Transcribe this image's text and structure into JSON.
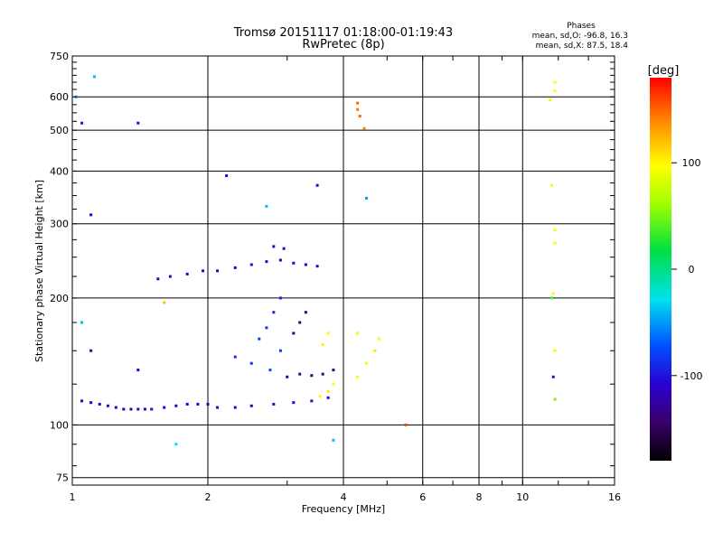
{
  "chart_data": {
    "type": "scatter",
    "title_line1": "Tromsø 20151117 01:18:00-01:19:43",
    "title_line2": "RwPretec (8p)",
    "xlabel": "Frequency [MHz]",
    "ylabel": "Stationary phase Virtual Height [km]",
    "x_scale": "log",
    "y_scale": "log",
    "xlim": [
      1,
      16
    ],
    "ylim": [
      72,
      750
    ],
    "x_ticks": [
      1,
      2,
      4,
      6,
      8,
      10,
      16
    ],
    "x_tick_labels": [
      "1",
      "2",
      "4",
      "6",
      "8",
      "10",
      "16"
    ],
    "y_ticks": [
      75,
      100,
      200,
      300,
      400,
      500,
      600,
      750
    ],
    "y_tick_labels": [
      "75",
      "100",
      "200",
      "300",
      "400",
      "500",
      "600",
      "750"
    ],
    "grid": true,
    "phase_info": {
      "title": "Phases",
      "line_o": "mean, sd,O: -96.8, 16.3",
      "line_x": "mean, sd,X:  87.5, 18.4"
    },
    "colorbar": {
      "label": "[deg]",
      "range": [
        -180,
        180
      ],
      "ticks": [
        100,
        0,
        -100
      ],
      "tick_labels": [
        "100",
        "0",
        "-100"
      ]
    },
    "series": [
      {
        "values": [
          {
            "x": 1.05,
            "y": 114,
            "phase": -110
          },
          {
            "x": 1.1,
            "y": 113,
            "phase": -108
          },
          {
            "x": 1.15,
            "y": 112,
            "phase": -112
          },
          {
            "x": 1.2,
            "y": 111,
            "phase": -105
          },
          {
            "x": 1.25,
            "y": 110,
            "phase": -110
          },
          {
            "x": 1.3,
            "y": 109,
            "phase": -108
          },
          {
            "x": 1.35,
            "y": 109,
            "phase": -112
          },
          {
            "x": 1.4,
            "y": 109,
            "phase": -106
          },
          {
            "x": 1.45,
            "y": 109,
            "phase": -110
          },
          {
            "x": 1.5,
            "y": 109,
            "phase": -104
          },
          {
            "x": 1.6,
            "y": 110,
            "phase": -108
          },
          {
            "x": 1.7,
            "y": 111,
            "phase": -110
          },
          {
            "x": 1.8,
            "y": 112,
            "phase": -106
          },
          {
            "x": 1.9,
            "y": 112,
            "phase": -108
          },
          {
            "x": 2.0,
            "y": 112,
            "phase": -110
          },
          {
            "x": 2.1,
            "y": 110,
            "phase": -106
          },
          {
            "x": 2.3,
            "y": 110,
            "phase": -108
          },
          {
            "x": 2.5,
            "y": 111,
            "phase": -110
          },
          {
            "x": 2.8,
            "y": 112,
            "phase": -104
          },
          {
            "x": 3.1,
            "y": 113,
            "phase": -106
          },
          {
            "x": 3.4,
            "y": 114,
            "phase": -108
          },
          {
            "x": 3.7,
            "y": 116,
            "phase": -104
          }
        ]
      },
      {
        "values": [
          {
            "x": 1.55,
            "y": 222,
            "phase": -110
          },
          {
            "x": 1.65,
            "y": 225,
            "phase": -108
          },
          {
            "x": 1.8,
            "y": 228,
            "phase": -112
          },
          {
            "x": 1.95,
            "y": 232,
            "phase": -106
          },
          {
            "x": 2.1,
            "y": 232,
            "phase": -110
          },
          {
            "x": 2.3,
            "y": 236,
            "phase": -108
          },
          {
            "x": 2.5,
            "y": 240,
            "phase": -104
          },
          {
            "x": 2.7,
            "y": 244,
            "phase": -112
          },
          {
            "x": 2.9,
            "y": 246,
            "phase": -106
          },
          {
            "x": 3.1,
            "y": 242,
            "phase": -108
          },
          {
            "x": 3.3,
            "y": 240,
            "phase": -110
          },
          {
            "x": 3.5,
            "y": 238,
            "phase": -106
          },
          {
            "x": 2.8,
            "y": 265,
            "phase": -108
          },
          {
            "x": 2.95,
            "y": 262,
            "phase": -110
          }
        ]
      },
      {
        "values": [
          {
            "x": 2.3,
            "y": 145,
            "phase": -90
          },
          {
            "x": 2.5,
            "y": 140,
            "phase": -85
          },
          {
            "x": 2.6,
            "y": 160,
            "phase": -80
          },
          {
            "x": 2.7,
            "y": 170,
            "phase": -85
          },
          {
            "x": 2.8,
            "y": 185,
            "phase": -90
          },
          {
            "x": 2.9,
            "y": 150,
            "phase": -80
          },
          {
            "x": 2.9,
            "y": 200,
            "phase": -90
          },
          {
            "x": 2.75,
            "y": 135,
            "phase": -75
          }
        ]
      },
      {
        "values": [
          {
            "x": 3.0,
            "y": 130,
            "phase": -135
          },
          {
            "x": 3.2,
            "y": 132,
            "phase": -140
          },
          {
            "x": 3.4,
            "y": 131,
            "phase": -138
          },
          {
            "x": 3.6,
            "y": 132,
            "phase": -135
          },
          {
            "x": 3.8,
            "y": 135,
            "phase": -140
          },
          {
            "x": 3.1,
            "y": 165,
            "phase": -135
          },
          {
            "x": 3.2,
            "y": 175,
            "phase": -138
          },
          {
            "x": 3.3,
            "y": 185,
            "phase": -140
          }
        ]
      },
      {
        "values": [
          {
            "x": 3.55,
            "y": 117,
            "phase": 100
          },
          {
            "x": 3.7,
            "y": 120,
            "phase": 105
          },
          {
            "x": 3.8,
            "y": 125,
            "phase": 98
          },
          {
            "x": 3.6,
            "y": 155,
            "phase": 102
          },
          {
            "x": 3.7,
            "y": 165,
            "phase": 100
          },
          {
            "x": 4.3,
            "y": 130,
            "phase": 95
          },
          {
            "x": 4.5,
            "y": 140,
            "phase": 100
          },
          {
            "x": 4.7,
            "y": 150,
            "phase": 105
          },
          {
            "x": 4.8,
            "y": 160,
            "phase": 98
          },
          {
            "x": 4.3,
            "y": 165,
            "phase": 100
          }
        ]
      },
      {
        "values": [
          {
            "x": 4.3,
            "y": 580,
            "phase": 150
          },
          {
            "x": 4.3,
            "y": 560,
            "phase": 145
          },
          {
            "x": 4.35,
            "y": 540,
            "phase": 150
          },
          {
            "x": 4.45,
            "y": 505,
            "phase": 140
          }
        ]
      },
      {
        "values": [
          {
            "x": 11.8,
            "y": 650,
            "phase": 100
          },
          {
            "x": 11.8,
            "y": 620,
            "phase": 95
          },
          {
            "x": 11.5,
            "y": 590,
            "phase": 100
          },
          {
            "x": 11.6,
            "y": 370,
            "phase": 100
          },
          {
            "x": 11.8,
            "y": 290,
            "phase": 95
          },
          {
            "x": 11.8,
            "y": 270,
            "phase": 100
          },
          {
            "x": 11.7,
            "y": 205,
            "phase": 100
          },
          {
            "x": 11.6,
            "y": 200,
            "phase": 40
          },
          {
            "x": 11.8,
            "y": 150,
            "phase": 100
          },
          {
            "x": 11.7,
            "y": 130,
            "phase": -100
          },
          {
            "x": 11.8,
            "y": 115,
            "phase": 50
          }
        ]
      },
      {
        "values": [
          {
            "x": 1.02,
            "y": 600,
            "phase": -50
          },
          {
            "x": 1.05,
            "y": 520,
            "phase": -100
          },
          {
            "x": 1.1,
            "y": 315,
            "phase": -110
          },
          {
            "x": 1.12,
            "y": 670,
            "phase": -40
          },
          {
            "x": 1.4,
            "y": 520,
            "phase": -110
          },
          {
            "x": 2.2,
            "y": 390,
            "phase": -110
          },
          {
            "x": 2.7,
            "y": 330,
            "phase": -40
          },
          {
            "x": 3.5,
            "y": 370,
            "phase": -110
          },
          {
            "x": 4.5,
            "y": 345,
            "phase": -50
          },
          {
            "x": 1.7,
            "y": 90,
            "phase": -30
          },
          {
            "x": 3.8,
            "y": 92,
            "phase": -40
          },
          {
            "x": 5.5,
            "y": 100,
            "phase": 160
          },
          {
            "x": 1.05,
            "y": 175,
            "phase": -40
          },
          {
            "x": 1.1,
            "y": 150,
            "phase": -120
          },
          {
            "x": 1.6,
            "y": 195,
            "phase": 120
          },
          {
            "x": 1.4,
            "y": 135,
            "phase": -110
          }
        ]
      }
    ]
  }
}
